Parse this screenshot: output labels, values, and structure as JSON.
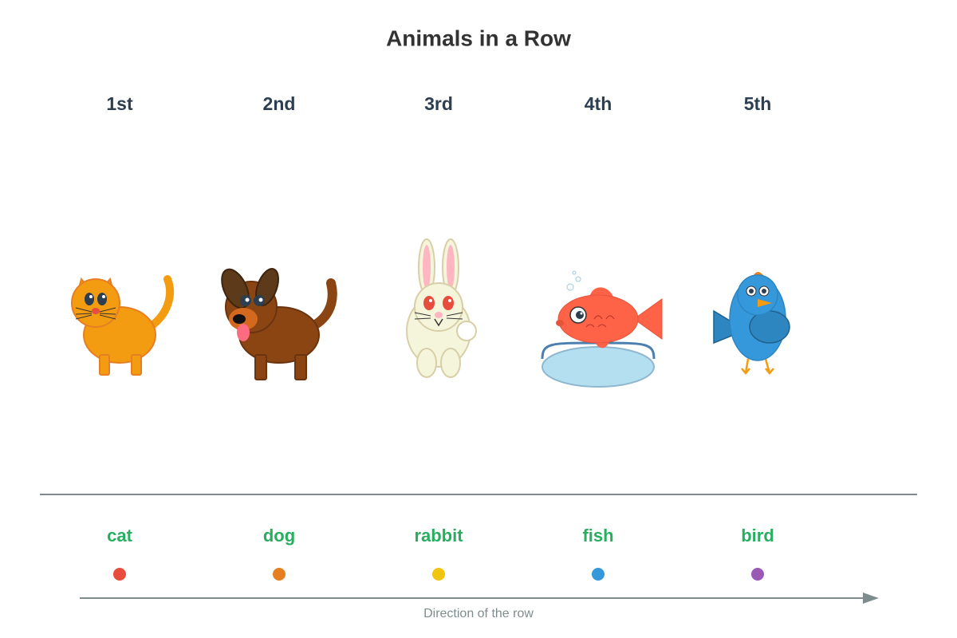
{
  "title": "Animals in a Row",
  "animals": [
    {
      "position": "1st",
      "name": "cat"
    },
    {
      "position": "2nd",
      "name": "dog"
    },
    {
      "position": "3rd",
      "name": "rabbit"
    },
    {
      "position": "4th",
      "name": "fish"
    },
    {
      "position": "5th",
      "name": "bird"
    }
  ],
  "direction_label": "Direction of the row"
}
